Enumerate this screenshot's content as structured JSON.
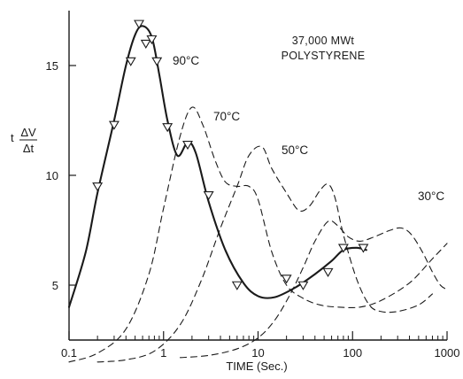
{
  "chart_data": {
    "type": "line",
    "x_scale": "log",
    "xlim": [
      0.1,
      1000
    ],
    "ylim": [
      2.5,
      17.5
    ],
    "x_ticks": [
      0.1,
      1,
      10,
      100,
      1000
    ],
    "x_tick_labels": [
      "0.1",
      "1",
      "10",
      "100",
      "1000"
    ],
    "y_ticks": [
      5,
      10,
      15
    ],
    "y_tick_labels": [
      "5",
      "10",
      "15"
    ],
    "xlabel": "TIME (Sec.)",
    "ylabel": {
      "prefix": "t",
      "numerator": "ΔV",
      "denominator": "Δt"
    },
    "annotation": [
      "37,000 MWt",
      "POLYSTYRENE"
    ],
    "grid": false,
    "series": [
      {
        "name": "90°C",
        "style": "solid",
        "points": [
          [
            0.1,
            4.0
          ],
          [
            0.15,
            6.5
          ],
          [
            0.2,
            9.2
          ],
          [
            0.3,
            12.5
          ],
          [
            0.4,
            15.0
          ],
          [
            0.5,
            16.4
          ],
          [
            0.6,
            16.8
          ],
          [
            0.75,
            16.3
          ],
          [
            0.9,
            14.6
          ],
          [
            1.1,
            12.5
          ],
          [
            1.4,
            10.9
          ],
          [
            1.8,
            11.5
          ],
          [
            2.2,
            11.0
          ],
          [
            3.0,
            8.8
          ],
          [
            4.5,
            6.6
          ],
          [
            7.0,
            5.1
          ],
          [
            10,
            4.5
          ],
          [
            15,
            4.45
          ],
          [
            25,
            4.9
          ],
          [
            40,
            5.5
          ],
          [
            60,
            6.1
          ],
          [
            80,
            6.6
          ],
          [
            110,
            6.7
          ],
          [
            140,
            6.6
          ]
        ]
      },
      {
        "name": "70°C",
        "style": "dashed",
        "points": [
          [
            0.1,
            1.5
          ],
          [
            0.2,
            1.9
          ],
          [
            0.4,
            3.0
          ],
          [
            0.7,
            5.5
          ],
          [
            1.0,
            8.5
          ],
          [
            1.5,
            11.8
          ],
          [
            2.0,
            13.1
          ],
          [
            2.6,
            12.3
          ],
          [
            3.5,
            10.7
          ],
          [
            4.5,
            9.7
          ],
          [
            6.0,
            9.5
          ],
          [
            8.0,
            9.5
          ],
          [
            10,
            8.9
          ],
          [
            14,
            6.5
          ],
          [
            20,
            5.0
          ],
          [
            30,
            4.4
          ],
          [
            45,
            4.1
          ],
          [
            70,
            4.0
          ],
          [
            120,
            4.0
          ],
          [
            200,
            4.3
          ],
          [
            400,
            5.1
          ],
          [
            700,
            6.2
          ],
          [
            1000,
            6.9
          ]
        ]
      },
      {
        "name": "50°C",
        "style": "dashed",
        "points": [
          [
            0.2,
            1.5
          ],
          [
            0.4,
            1.6
          ],
          [
            0.8,
            2.0
          ],
          [
            1.5,
            3.2
          ],
          [
            2.5,
            5.2
          ],
          [
            4.0,
            7.6
          ],
          [
            6.0,
            9.5
          ],
          [
            8.0,
            10.9
          ],
          [
            11,
            11.3
          ],
          [
            14,
            10.3
          ],
          [
            20,
            9.2
          ],
          [
            27,
            8.4
          ],
          [
            35,
            8.6
          ],
          [
            45,
            9.3
          ],
          [
            55,
            9.6
          ],
          [
            65,
            9.0
          ],
          [
            80,
            7.3
          ],
          [
            110,
            5.3
          ],
          [
            150,
            4.1
          ],
          [
            200,
            3.8
          ],
          [
            300,
            3.8
          ],
          [
            500,
            4.1
          ],
          [
            700,
            4.6
          ]
        ]
      },
      {
        "name": "30°C",
        "style": "dashed",
        "points": [
          [
            1.5,
            1.7
          ],
          [
            3,
            1.8
          ],
          [
            6,
            2.1
          ],
          [
            10,
            2.6
          ],
          [
            15,
            3.4
          ],
          [
            22,
            4.6
          ],
          [
            30,
            5.8
          ],
          [
            40,
            7.0
          ],
          [
            55,
            7.9
          ],
          [
            70,
            7.7
          ],
          [
            90,
            7.2
          ],
          [
            120,
            7.0
          ],
          [
            170,
            7.2
          ],
          [
            250,
            7.5
          ],
          [
            330,
            7.6
          ],
          [
            420,
            7.3
          ],
          [
            550,
            6.5
          ],
          [
            700,
            5.6
          ],
          [
            850,
            5.0
          ],
          [
            1000,
            4.8
          ]
        ]
      }
    ],
    "markers": {
      "series": "90°C",
      "shape": "inverted-triangle",
      "points": [
        [
          0.2,
          9.5
        ],
        [
          0.3,
          12.3
        ],
        [
          0.45,
          15.2
        ],
        [
          0.55,
          16.9
        ],
        [
          0.65,
          16.0
        ],
        [
          0.75,
          16.2
        ],
        [
          0.85,
          15.2
        ],
        [
          1.1,
          12.2
        ],
        [
          1.8,
          11.4
        ],
        [
          3.0,
          9.1
        ],
        [
          6.0,
          5.0
        ],
        [
          20,
          5.3
        ],
        [
          30,
          5.0
        ],
        [
          55,
          5.6
        ],
        [
          80,
          6.7
        ],
        [
          130,
          6.7
        ]
      ]
    }
  }
}
